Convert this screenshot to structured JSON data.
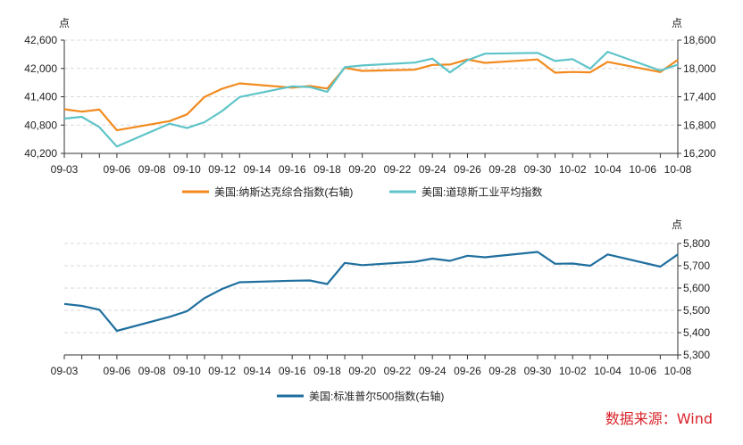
{
  "source": "数据来源：Wind",
  "colors": {
    "nasdaq": "#f28a1e",
    "dow": "#5ec4c8",
    "sp500": "#1f6f9f"
  },
  "chart_data": [
    {
      "type": "line",
      "x": [
        "09-03",
        "09-04",
        "09-05",
        "09-06",
        "09-09",
        "09-10",
        "09-11",
        "09-12",
        "09-13",
        "09-16",
        "09-17",
        "09-18",
        "09-19",
        "09-20",
        "09-23",
        "09-24",
        "09-25",
        "09-26",
        "09-27",
        "09-30",
        "10-01",
        "10-02",
        "10-03",
        "10-04",
        "10-07",
        "10-08"
      ],
      "x_tick_labels": [
        "09-03",
        "09-06",
        "09-08",
        "09-10",
        "09-12",
        "09-14",
        "09-16",
        "09-18",
        "09-20",
        "09-22",
        "09-24",
        "09-26",
        "09-28",
        "09-30",
        "10-02",
        "10-04",
        "10-06",
        "10-08"
      ],
      "left_axis": {
        "unit": "点",
        "ylim": [
          40200,
          42600
        ],
        "ticks": [
          "40,200",
          "40,800",
          "41,400",
          "42,000",
          "42,600"
        ]
      },
      "right_axis": {
        "unit": "点",
        "ylim": [
          16200,
          18600
        ],
        "ticks": [
          "16,200",
          "16,800",
          "17,400",
          "18,000",
          "18,600"
        ]
      },
      "grid": true,
      "legend_position": "bottom",
      "series": [
        {
          "name": "美国:纳斯达克综合指数(右轴)",
          "axis": "right",
          "values": [
            17136,
            17084,
            17127,
            16690,
            16884,
            17026,
            17396,
            17570,
            17684,
            17593,
            17628,
            17573,
            18013,
            17948,
            17974,
            18075,
            18082,
            18190,
            18119,
            18189,
            17910,
            17925,
            17918,
            18138,
            17924,
            18183
          ]
        },
        {
          "name": "美国:道琼斯工业平均指数",
          "axis": "left",
          "values": [
            40937,
            40975,
            40756,
            40345,
            40829,
            40737,
            40861,
            41097,
            41394,
            41622,
            41606,
            41503,
            42025,
            42063,
            42124,
            42208,
            41915,
            42175,
            42313,
            42330,
            42157,
            42197,
            41995,
            42353,
            41955,
            42080
          ]
        }
      ]
    },
    {
      "type": "line",
      "x": [
        "09-03",
        "09-04",
        "09-05",
        "09-06",
        "09-09",
        "09-10",
        "09-11",
        "09-12",
        "09-13",
        "09-16",
        "09-17",
        "09-18",
        "09-19",
        "09-20",
        "09-23",
        "09-24",
        "09-25",
        "09-26",
        "09-27",
        "09-30",
        "10-01",
        "10-02",
        "10-03",
        "10-04",
        "10-07",
        "10-08"
      ],
      "x_tick_labels": [
        "09-03",
        "09-06",
        "09-08",
        "09-10",
        "09-12",
        "09-14",
        "09-16",
        "09-18",
        "09-20",
        "09-22",
        "09-24",
        "09-26",
        "09-28",
        "09-30",
        "10-02",
        "10-04",
        "10-06",
        "10-08"
      ],
      "right_axis": {
        "unit": "点",
        "ylim": [
          5300,
          5800
        ],
        "ticks": [
          "5,300",
          "5,400",
          "5,500",
          "5,600",
          "5,700",
          "5,800"
        ]
      },
      "grid": true,
      "legend_position": "bottom",
      "series": [
        {
          "name": "美国:标准普尔500指数(右轴)",
          "axis": "right",
          "values": [
            5529,
            5520,
            5503,
            5408,
            5471,
            5496,
            5555,
            5596,
            5626,
            5633,
            5634,
            5618,
            5713,
            5703,
            5718,
            5732,
            5722,
            5745,
            5738,
            5762,
            5709,
            5710,
            5700,
            5751,
            5696,
            5751
          ]
        }
      ]
    }
  ]
}
